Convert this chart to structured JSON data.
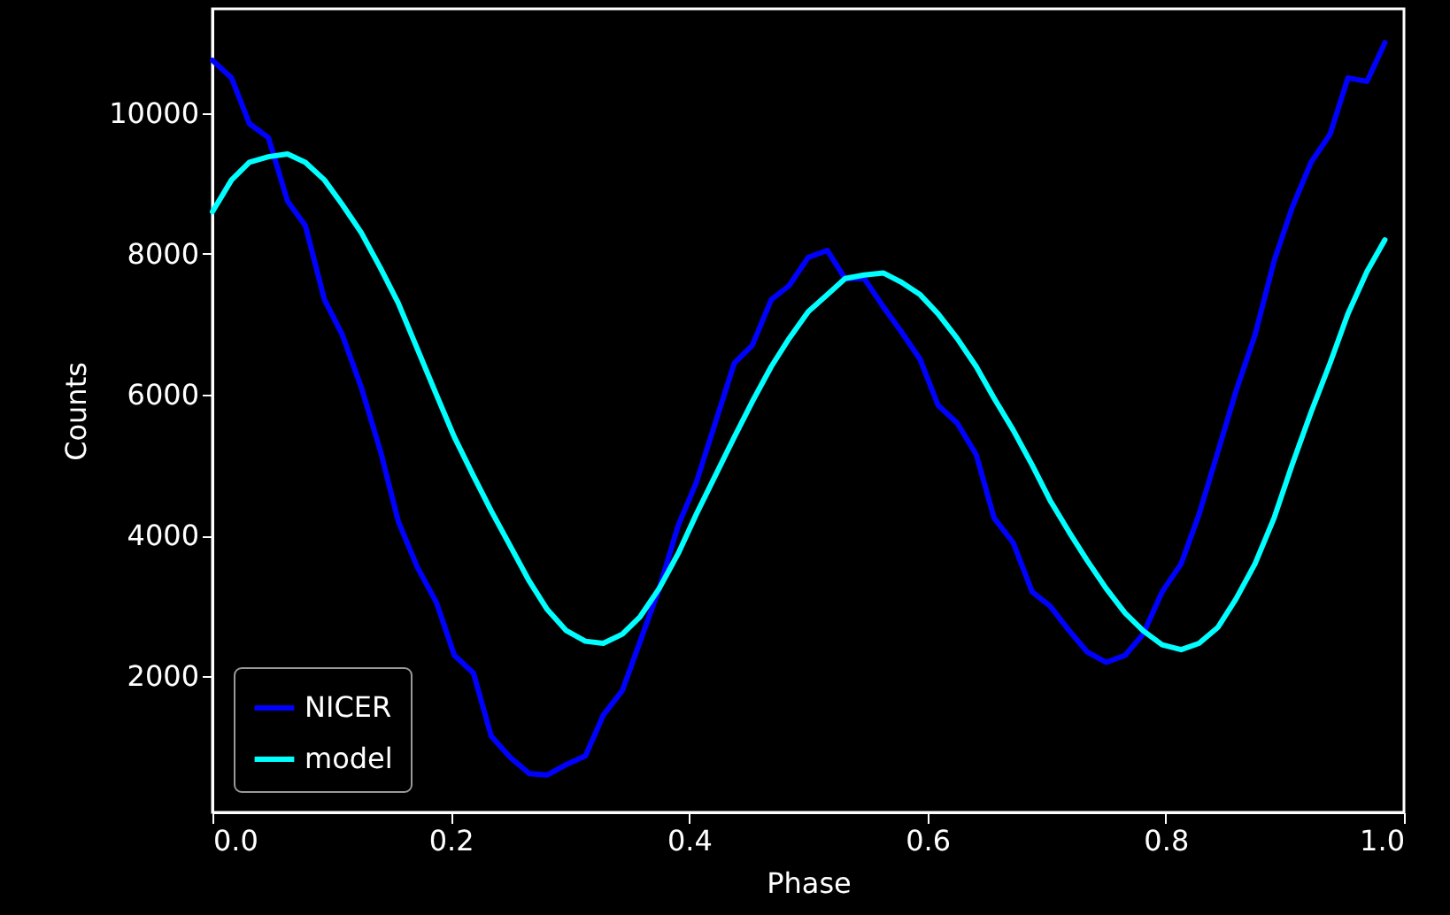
{
  "chart_data": {
    "type": "line",
    "xlabel": "Phase",
    "ylabel": "Counts",
    "xlim": [
      0,
      1
    ],
    "ylim": [
      70,
      11480
    ],
    "xticks": [
      {
        "value": 0,
        "label": "0.0"
      },
      0.2,
      0.4,
      0.6,
      0.8,
      {
        "value": 1,
        "label": "1.0"
      }
    ],
    "yticks": [
      2000,
      4000,
      6000,
      8000,
      10000
    ],
    "grid": false,
    "legend": "bottom left",
    "marker": "none",
    "line_style": "solid",
    "x": [
      0,
      0.016,
      0.031,
      0.047,
      0.063,
      0.078,
      0.094,
      0.109,
      0.125,
      0.141,
      0.156,
      0.172,
      0.188,
      0.203,
      0.219,
      0.234,
      0.25,
      0.266,
      0.281,
      0.297,
      0.313,
      0.328,
      0.344,
      0.359,
      0.375,
      0.391,
      0.406,
      0.422,
      0.438,
      0.453,
      0.469,
      0.484,
      0.5,
      0.516,
      0.531,
      0.547,
      0.563,
      0.578,
      0.594,
      0.609,
      0.625,
      0.641,
      0.656,
      0.672,
      0.688,
      0.703,
      0.719,
      0.734,
      0.75,
      0.766,
      0.781,
      0.797,
      0.813,
      0.828,
      0.844,
      0.859,
      0.875,
      0.891,
      0.906,
      0.922,
      0.938,
      0.953,
      0.969,
      0.984
    ],
    "series": [
      {
        "name": "NICER",
        "color": "#0000ff",
        "values": [
          10750,
          10500,
          9850,
          9650,
          8750,
          8400,
          7350,
          6850,
          6100,
          5200,
          4200,
          3550,
          3050,
          2300,
          2050,
          1150,
          850,
          620,
          600,
          750,
          870,
          1450,
          1800,
          2500,
          3250,
          4150,
          4750,
          5600,
          6450,
          6700,
          7350,
          7550,
          7950,
          8050,
          7650,
          7650,
          7250,
          6900,
          6500,
          5850,
          5600,
          5150,
          4250,
          3900,
          3200,
          3000,
          2650,
          2350,
          2200,
          2300,
          2600,
          3200,
          3600,
          4300,
          5200,
          6050,
          6850,
          7900,
          8650,
          9300,
          9700,
          10500,
          10450,
          11000
        ]
      },
      {
        "name": "model",
        "color": "#00ffff",
        "values": [
          8600,
          9050,
          9300,
          9380,
          9420,
          9300,
          9050,
          8700,
          8300,
          7800,
          7300,
          6650,
          6000,
          5400,
          4850,
          4350,
          3850,
          3350,
          2950,
          2650,
          2500,
          2470,
          2600,
          2850,
          3250,
          3750,
          4300,
          4850,
          5400,
          5900,
          6400,
          6800,
          7180,
          7420,
          7650,
          7700,
          7730,
          7600,
          7420,
          7150,
          6800,
          6400,
          5950,
          5500,
          5000,
          4500,
          4050,
          3650,
          3250,
          2900,
          2650,
          2450,
          2380,
          2470,
          2700,
          3100,
          3600,
          4250,
          5000,
          5750,
          6450,
          7150,
          7750,
          8200
        ]
      }
    ]
  }
}
